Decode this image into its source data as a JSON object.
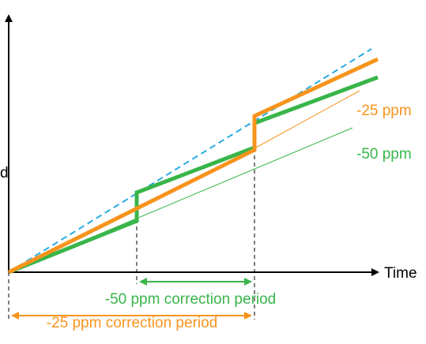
{
  "axes": {
    "x_label": "Time",
    "y_label_fragment": "d"
  },
  "labels": {
    "orange_rate": "-25 ppm",
    "green_rate": "-50 ppm",
    "green_period": "-50 ppm correction period",
    "orange_period": "-25 ppm correction period"
  },
  "colors": {
    "orange": "#f7941d",
    "green": "#39b54a",
    "blue_dashed": "#29abe2",
    "axis": "#000000"
  }
}
